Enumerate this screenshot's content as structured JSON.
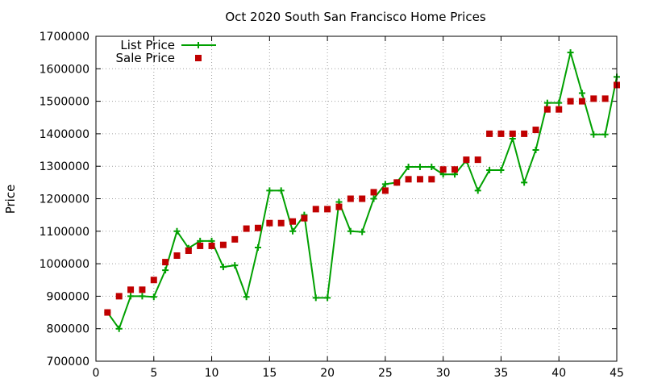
{
  "chart_data": {
    "type": "line",
    "title": "Oct 2020 South San Francisco Home Prices",
    "xlabel": "",
    "ylabel": "Price",
    "xlim": [
      0,
      45
    ],
    "ylim": [
      700000,
      1700000
    ],
    "xticks": [
      0,
      5,
      10,
      15,
      20,
      25,
      30,
      35,
      40,
      45
    ],
    "yticks": [
      700000,
      800000,
      900000,
      1000000,
      1100000,
      1200000,
      1300000,
      1400000,
      1500000,
      1600000,
      1700000
    ],
    "grid": true,
    "legend_position": "top-left",
    "x": [
      1,
      2,
      3,
      4,
      5,
      6,
      7,
      8,
      9,
      10,
      11,
      12,
      13,
      14,
      15,
      16,
      17,
      18,
      19,
      20,
      21,
      22,
      23,
      24,
      25,
      26,
      27,
      28,
      29,
      30,
      31,
      32,
      33,
      34,
      35,
      36,
      37,
      38,
      39,
      40,
      41,
      42,
      43,
      44,
      45
    ],
    "series": [
      {
        "name": "List Price",
        "style": "line-plus",
        "color": "#00a000",
        "values": [
          850000,
          800000,
          900000,
          900000,
          898000,
          980000,
          1100000,
          1048000,
          1070000,
          1070000,
          990000,
          995000,
          898000,
          1050000,
          1225000,
          1225000,
          1100000,
          1150000,
          895000,
          895000,
          1190000,
          1100000,
          1098000,
          1200000,
          1245000,
          1250000,
          1298000,
          1298000,
          1298000,
          1275000,
          1275000,
          1318000,
          1225000,
          1288000,
          1288000,
          1385000,
          1250000,
          1350000,
          1495000,
          1495000,
          1650000,
          1525000,
          1398000,
          1398000,
          1575000
        ]
      },
      {
        "name": "Sale Price",
        "style": "square-points",
        "color": "#c00000",
        "values": [
          850000,
          900000,
          920000,
          920000,
          950000,
          1005000,
          1025000,
          1040000,
          1055000,
          1055000,
          1058000,
          1075000,
          1108000,
          1110000,
          1125000,
          1125000,
          1130000,
          1140000,
          1168000,
          1168000,
          1175000,
          1200000,
          1200000,
          1220000,
          1225000,
          1250000,
          1260000,
          1260000,
          1260000,
          1290000,
          1290000,
          1320000,
          1320000,
          1400000,
          1400000,
          1400000,
          1400000,
          1412000,
          1475000,
          1475000,
          1500000,
          1500000,
          1508000,
          1508000,
          1550000
        ]
      }
    ]
  }
}
